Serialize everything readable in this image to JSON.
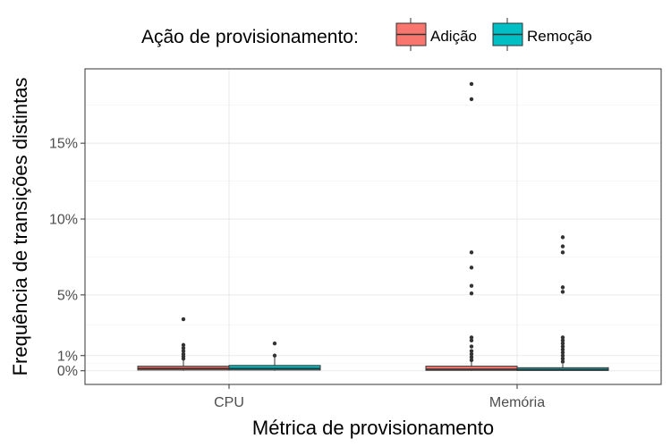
{
  "chart_data": {
    "type": "box",
    "title": "",
    "xlabel": "Métrica de provisionamento",
    "ylabel": "Frequência de transições distintas",
    "legend": {
      "title": "Ação de provisionamento:",
      "position": "top",
      "entries": [
        {
          "name": "Adição",
          "color": "#F8766D"
        },
        {
          "name": "Remoção",
          "color": "#00BFC4"
        }
      ]
    },
    "categories": [
      "CPU",
      "Memória"
    ],
    "y_ticks": [
      {
        "value": 0,
        "label": "0%"
      },
      {
        "value": 1,
        "label": "1%"
      },
      {
        "value": 5,
        "label": "5%"
      },
      {
        "value": 10,
        "label": "10%"
      },
      {
        "value": 15,
        "label": "15%"
      }
    ],
    "ylim": [
      -0.9,
      19.9
    ],
    "grid": true,
    "series": [
      {
        "name": "Adição",
        "color": "#F8766D",
        "boxes": [
          {
            "category": "CPU",
            "min": 0,
            "q1": 0.05,
            "median": 0.15,
            "q3": 0.3,
            "max": 0.7,
            "outliers": [
              0.8,
              0.95,
              1.1,
              1.3,
              1.5,
              1.7,
              3.4
            ]
          },
          {
            "category": "Memória",
            "min": 0,
            "q1": 0.03,
            "median": 0.1,
            "q3": 0.3,
            "max": 0.6,
            "outliers": [
              0.7,
              0.9,
              1.1,
              1.3,
              1.6,
              2.0,
              2.2,
              5.1,
              5.6,
              6.8,
              7.8,
              17.9,
              18.9
            ]
          }
        ]
      },
      {
        "name": "Remoção",
        "color": "#00BFC4",
        "boxes": [
          {
            "category": "CPU",
            "min": 0,
            "q1": 0.05,
            "median": 0.15,
            "q3": 0.35,
            "max": 0.9,
            "outliers": [
              1.0,
              1.8
            ]
          },
          {
            "category": "Memória",
            "min": 0,
            "q1": 0.02,
            "median": 0.08,
            "q3": 0.2,
            "max": 0.45,
            "outliers": [
              0.6,
              0.8,
              1.0,
              1.2,
              1.4,
              1.6,
              1.8,
              2.0,
              2.2,
              5.2,
              5.5,
              7.8,
              8.2,
              8.8
            ]
          }
        ]
      }
    ]
  }
}
